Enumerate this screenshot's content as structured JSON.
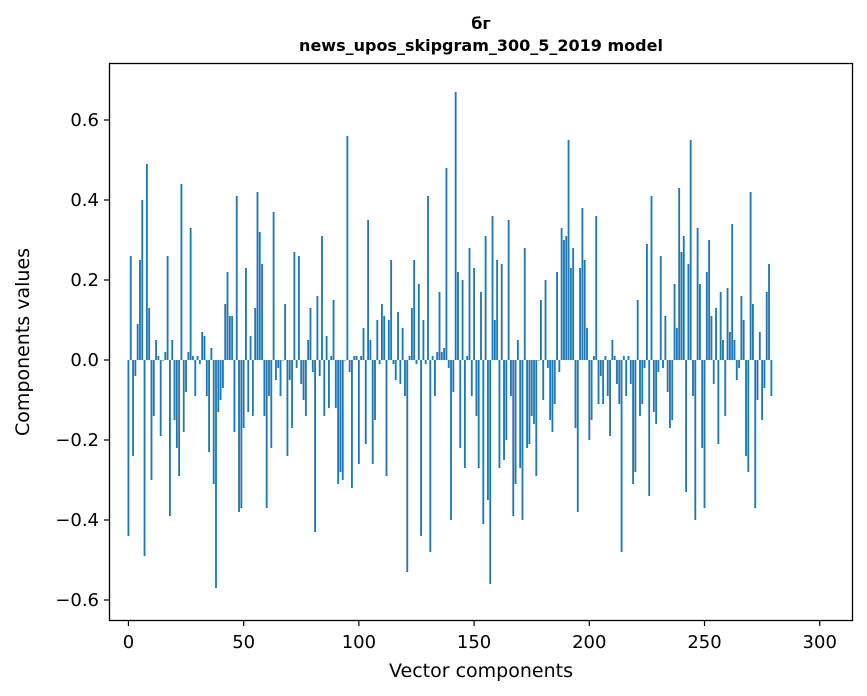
{
  "chart_data": {
    "type": "bar",
    "title": "бг",
    "subtitle": "news_upos_skipgram_300_5_2019 model",
    "xlabel": "Vector components",
    "ylabel": "Components values",
    "xlim": [
      -8,
      314
    ],
    "ylim": [
      -0.65,
      0.74
    ],
    "xticks": [
      0,
      50,
      100,
      150,
      200,
      250,
      300
    ],
    "yticks": [
      -0.6,
      -0.4,
      -0.2,
      0.0,
      0.2,
      0.4,
      0.6
    ],
    "ytick_labels": [
      "−0.6",
      "−0.4",
      "−0.2",
      "0.0",
      "0.2",
      "0.4",
      "0.6"
    ],
    "xtick_labels": [
      "0",
      "50",
      "100",
      "150",
      "200",
      "250",
      "300"
    ],
    "bar_color": "#1f77b4",
    "values": [
      -0.44,
      0.26,
      -0.24,
      -0.04,
      0.09,
      0.25,
      0.4,
      -0.49,
      0.49,
      0.13,
      -0.3,
      -0.14,
      0.05,
      0.01,
      -0.19,
      0.0,
      0.02,
      0.26,
      -0.39,
      0.05,
      -0.15,
      -0.22,
      -0.29,
      0.44,
      -0.18,
      -0.08,
      0.02,
      0.33,
      0.01,
      -0.09,
      0.01,
      -0.01,
      0.07,
      0.06,
      -0.09,
      -0.23,
      0.03,
      -0.31,
      -0.57,
      -0.13,
      -0.1,
      -0.07,
      0.14,
      0.22,
      0.11,
      0.11,
      -0.18,
      0.41,
      -0.38,
      -0.37,
      -0.17,
      0.23,
      -0.13,
      0.06,
      -0.14,
      0.13,
      0.42,
      0.32,
      0.24,
      -0.14,
      -0.37,
      -0.09,
      -0.22,
      0.37,
      -0.05,
      -0.02,
      -0.09,
      0.0,
      0.14,
      -0.24,
      -0.05,
      -0.17,
      0.27,
      -0.02,
      0.26,
      -0.06,
      -0.1,
      -0.14,
      0.05,
      0.13,
      -0.03,
      -0.43,
      0.16,
      -0.04,
      0.31,
      -0.14,
      0.06,
      -0.12,
      0.01,
      0.15,
      -0.12,
      -0.31,
      -0.28,
      -0.3,
      0.0,
      0.56,
      -0.03,
      -0.32,
      0.01,
      0.01,
      -0.26,
      0.01,
      0.08,
      -0.21,
      0.35,
      0.05,
      -0.26,
      -0.15,
      0.1,
      -0.01,
      0.14,
      0.11,
      -0.29,
      0.1,
      0.25,
      -0.01,
      -0.05,
      0.12,
      -0.06,
      0.08,
      -0.09,
      -0.53,
      0.01,
      0.13,
      0.25,
      -0.01,
      0.19,
      -0.44,
      0.1,
      -0.01,
      0.41,
      -0.48,
      0.01,
      -0.09,
      0.02,
      0.17,
      0.02,
      0.03,
      0.48,
      -0.02,
      -0.4,
      -0.08,
      0.67,
      0.22,
      -0.22,
      0.2,
      -0.27,
      0.01,
      0.28,
      -0.09,
      0.23,
      -0.14,
      -0.27,
      0.17,
      -0.41,
      0.31,
      -0.35,
      -0.56,
      0.36,
      0.1,
      0.25,
      -0.27,
      0.24,
      -0.25,
      -0.2,
      0.35,
      -0.09,
      -0.39,
      -0.31,
      0.05,
      -0.27,
      -0.4,
      0.28,
      -0.22,
      -0.21,
      -0.14,
      -0.16,
      -0.29,
      0.0,
      0.15,
      -0.1,
      0.2,
      -0.02,
      -0.15,
      -0.18,
      -0.11,
      0.22,
      -0.03,
      0.33,
      0.3,
      0.31,
      0.55,
      0.23,
      0.28,
      -0.17,
      -0.38,
      0.23,
      0.38,
      0.25,
      0.08,
      -0.2,
      -0.15,
      0.01,
      0.36,
      -0.11,
      -0.04,
      -0.11,
      0.01,
      -0.09,
      -0.19,
      0.05,
      0.01,
      -0.06,
      -0.11,
      -0.48,
      0.01,
      -0.09,
      0.01,
      -0.06,
      -0.31,
      -0.28,
      0.15,
      -0.14,
      -0.11,
      -0.02,
      0.29,
      -0.34,
      0.41,
      -0.13,
      -0.16,
      -0.03,
      0.26,
      -0.02,
      0.11,
      -0.08,
      -0.17,
      -0.15,
      0.19,
      0.08,
      0.43,
      0.27,
      0.31,
      -0.33,
      0.24,
      0.55,
      -0.09,
      -0.4,
      0.33,
      0.19,
      -0.22,
      -0.37,
      0.22,
      0.3,
      0.11,
      -0.06,
      0.13,
      -0.21,
      0.17,
      0.05,
      -0.14,
      0.18,
      0.07,
      0.34,
      0.05,
      -0.05,
      -0.02,
      0.16,
      0.1,
      -0.24,
      -0.28,
      0.42,
      0.14,
      -0.37,
      -0.1,
      0.07,
      -0.15,
      -0.07,
      0.17,
      0.24,
      -0.09
    ]
  }
}
